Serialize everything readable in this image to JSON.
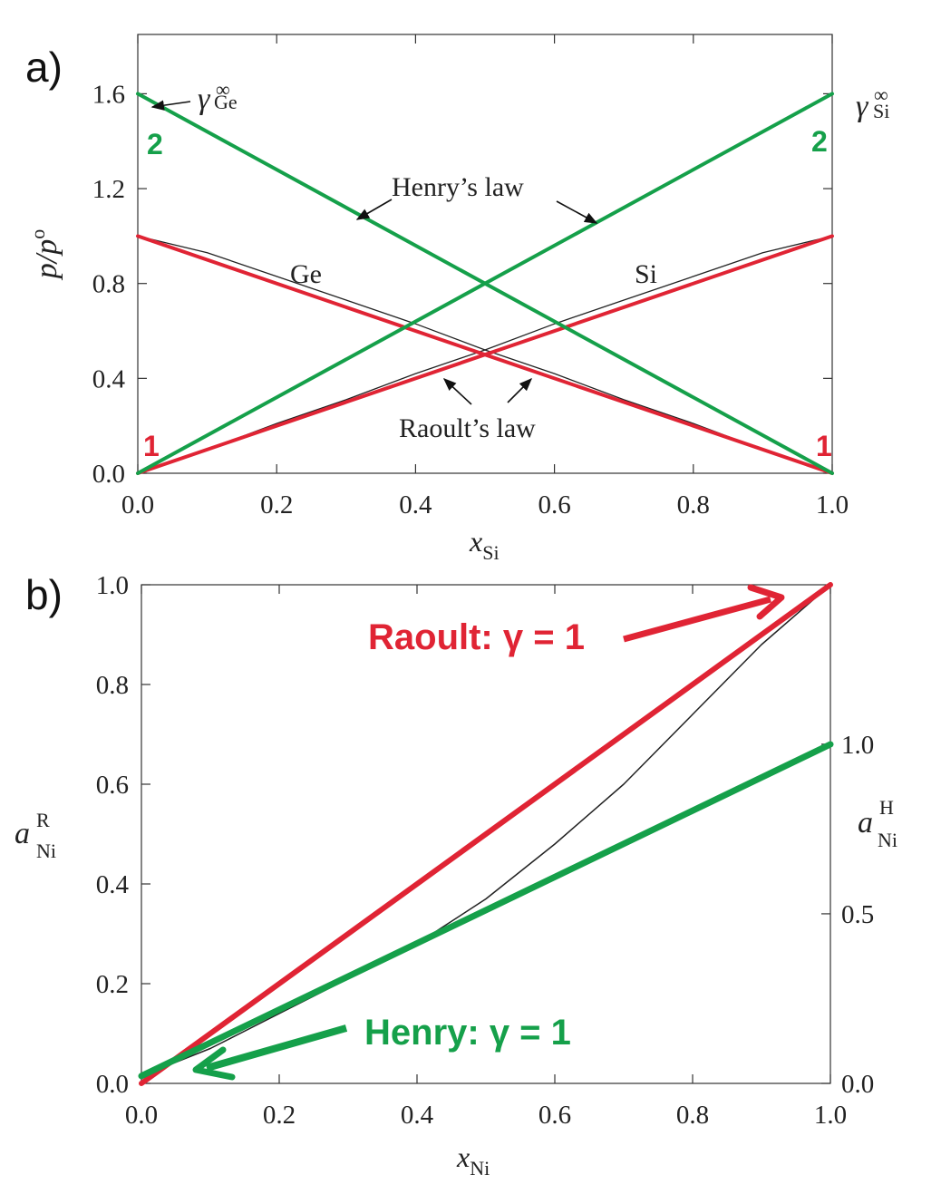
{
  "chart_data": [
    {
      "panel_label": "a)",
      "type": "line",
      "xlabel": "x",
      "xlabel_sub": "Si",
      "ylabel": "p/p",
      "ylabel_sup": "o",
      "xlim": [
        0.0,
        1.0
      ],
      "ylim": [
        0.0,
        1.85
      ],
      "x_ticks": [
        "0.0",
        "0.2",
        "0.4",
        "0.6",
        "0.8",
        "1.0"
      ],
      "y_ticks": [
        "0.0",
        "0.4",
        "0.8",
        "1.2",
        "1.6"
      ],
      "grid": false,
      "colors": {
        "raoult": "#e02434",
        "henry": "#15a04a",
        "curve": "#222222",
        "annotation": "#222222"
      },
      "series": [
        {
          "key": "ge_curve",
          "kind": "curve",
          "x": [
            0.0,
            0.1,
            0.2,
            0.3,
            0.4,
            0.5,
            0.6,
            0.7,
            0.8,
            0.9,
            1.0
          ],
          "y": [
            1.0,
            0.93,
            0.83,
            0.73,
            0.63,
            0.52,
            0.42,
            0.31,
            0.21,
            0.1,
            0.0
          ]
        },
        {
          "key": "si_curve",
          "kind": "curve",
          "x": [
            0.0,
            0.1,
            0.2,
            0.3,
            0.4,
            0.5,
            0.6,
            0.7,
            0.8,
            0.9,
            1.0
          ],
          "y": [
            0.0,
            0.1,
            0.21,
            0.31,
            0.42,
            0.52,
            0.63,
            0.73,
            0.83,
            0.93,
            1.0
          ]
        },
        {
          "key": "raoult_ge",
          "kind": "raoult",
          "x": [
            0.0,
            1.0
          ],
          "y": [
            1.0,
            0.0
          ]
        },
        {
          "key": "raoult_si",
          "kind": "raoult",
          "x": [
            0.0,
            1.0
          ],
          "y": [
            0.0,
            1.0
          ]
        },
        {
          "key": "henry_ge",
          "kind": "henry",
          "x": [
            0.0,
            1.0
          ],
          "y": [
            1.6,
            0.0
          ]
        },
        {
          "key": "henry_si",
          "kind": "henry",
          "x": [
            0.0,
            1.0
          ],
          "y": [
            0.0,
            1.6
          ]
        }
      ],
      "annotations": {
        "gamma_ge": {
          "symbol": "γ",
          "sup": "∞",
          "sub": "Ge"
        },
        "gamma_si": {
          "symbol": "γ",
          "sup": "∞",
          "sub": "Si"
        },
        "henry_label": "Henry’s law",
        "raoult_label": "Raoult’s law",
        "ge_label": "Ge",
        "si_label": "Si",
        "left_two": "2",
        "right_two": "2",
        "left_one": "1",
        "right_one": "1"
      }
    },
    {
      "panel_label": "b)",
      "type": "line",
      "xlabel": "x",
      "xlabel_sub": "Ni",
      "ylabel": "a",
      "ylabel_sup": "R",
      "ylabel_sub": "Ni",
      "y2label": "a",
      "y2label_sup": "H",
      "y2label_sub": "Ni",
      "xlim": [
        0.0,
        1.0
      ],
      "ylim": [
        0.0,
        1.0
      ],
      "y2lim": [
        0.0,
        1.47
      ],
      "x_ticks": [
        "0.0",
        "0.2",
        "0.4",
        "0.6",
        "0.8",
        "1.0"
      ],
      "y_ticks": [
        "0.0",
        "0.2",
        "0.4",
        "0.6",
        "0.8",
        "1.0"
      ],
      "y2_ticks": [
        "0.0",
        "0.5",
        "1.0"
      ],
      "grid": false,
      "colors": {
        "raoult": "#e02434",
        "henry": "#15a04a",
        "curve": "#222222"
      },
      "series": [
        {
          "key": "activity_curve",
          "kind": "curve",
          "x": [
            0.0,
            0.1,
            0.2,
            0.3,
            0.4,
            0.5,
            0.6,
            0.7,
            0.8,
            0.9,
            1.0
          ],
          "y": [
            0.015,
            0.07,
            0.14,
            0.21,
            0.28,
            0.37,
            0.48,
            0.6,
            0.74,
            0.88,
            1.0
          ]
        },
        {
          "key": "raoult_line",
          "kind": "raoult",
          "x": [
            0.0,
            1.0
          ],
          "y": [
            0.0,
            1.0
          ]
        },
        {
          "key": "henry_line",
          "kind": "henry",
          "x": [
            0.0,
            1.0
          ],
          "y": [
            0.015,
            0.68
          ]
        }
      ],
      "annotations": {
        "raoult": "Raoult: γ = 1",
        "henry": "Henry: γ = 1"
      }
    }
  ]
}
